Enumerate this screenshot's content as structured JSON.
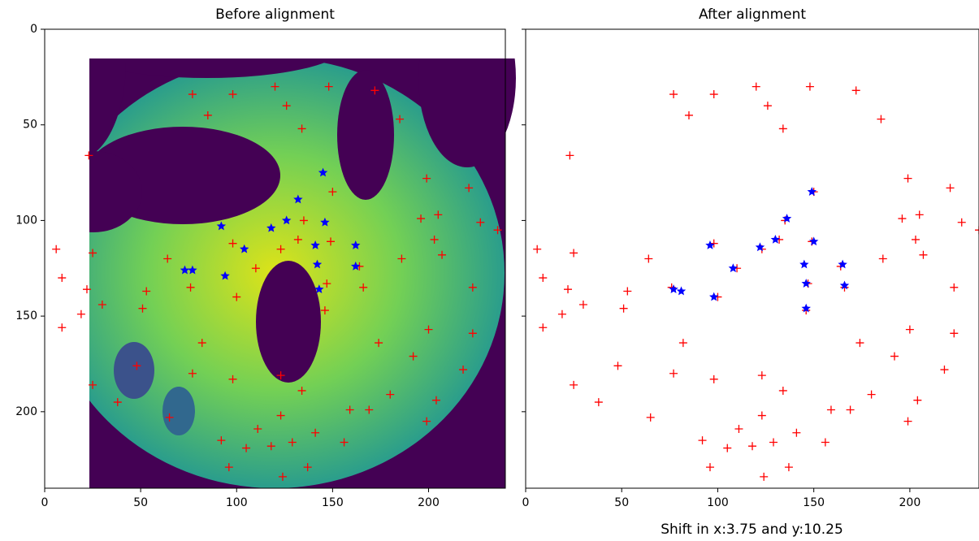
{
  "chart_data": [
    {
      "type": "scatter",
      "title": "Before alignment",
      "xlim": [
        0,
        240
      ],
      "ylim": [
        240,
        0
      ],
      "xticks": [
        0,
        50,
        100,
        150,
        200
      ],
      "yticks": [
        0,
        50,
        100,
        150,
        200
      ],
      "show_ytick_labels": true,
      "series": [
        {
          "marker": "+",
          "color": "#ff0000",
          "x": [
            77,
            98,
            120,
            126,
            85,
            134,
            148,
            172,
            185,
            23,
            199,
            221,
            150,
            205,
            196,
            227,
            236,
            135,
            149,
            132,
            123,
            98,
            25,
            6,
            203,
            207,
            186,
            64,
            164,
            110,
            9,
            22,
            76,
            53,
            147,
            166,
            223,
            30,
            19,
            51,
            100,
            146,
            9,
            200,
            223,
            174,
            82,
            192,
            48,
            218,
            77,
            98,
            123,
            134,
            25,
            180,
            38,
            204,
            159,
            169,
            199,
            123,
            65,
            111,
            141,
            92,
            129,
            118,
            156,
            105,
            137,
            96,
            124
          ],
          "y": [
            34,
            34,
            30,
            40,
            45,
            52,
            30,
            32,
            47,
            66,
            78,
            83,
            85,
            97,
            99,
            101,
            105,
            100,
            111,
            110,
            115,
            112,
            117,
            115,
            110,
            118,
            120,
            120,
            124,
            125,
            130,
            136,
            135,
            137,
            133,
            135,
            135,
            144,
            149,
            146,
            140,
            147,
            156,
            157,
            159,
            164,
            164,
            171,
            176,
            178,
            180,
            183,
            181,
            189,
            186,
            191,
            195,
            194,
            199,
            199,
            205,
            202,
            203,
            209,
            211,
            215,
            216,
            218,
            216,
            219,
            229,
            229,
            234
          ]
        },
        {
          "marker": "*",
          "color": "#0000ff",
          "x": [
            145,
            132,
            146,
            126,
            118,
            92,
            104,
            141,
            162,
            142,
            162,
            73,
            77,
            94,
            143
          ],
          "y": [
            75,
            89,
            101,
            100,
            104,
            103,
            115,
            113,
            113,
            123,
            124,
            126,
            126,
            129,
            136
          ]
        }
      ]
    },
    {
      "type": "scatter",
      "title": "After alignment",
      "xlabel": "Shift in x:3.75 and y:10.25",
      "xlim": [
        0,
        236
      ],
      "ylim": [
        240,
        0
      ],
      "xticks": [
        0,
        50,
        100,
        150,
        200
      ],
      "yticks": [
        0,
        50,
        100,
        150,
        200
      ],
      "show_ytick_labels": false,
      "series": [
        {
          "marker": "+",
          "color": "#ff0000",
          "x": [
            77,
            98,
            120,
            126,
            85,
            134,
            148,
            172,
            185,
            23,
            199,
            221,
            150,
            205,
            196,
            227,
            236,
            135,
            149,
            132,
            123,
            98,
            25,
            6,
            203,
            207,
            186,
            64,
            164,
            110,
            9,
            22,
            76,
            53,
            147,
            166,
            223,
            30,
            19,
            51,
            100,
            146,
            9,
            200,
            223,
            174,
            82,
            192,
            48,
            218,
            77,
            98,
            123,
            134,
            25,
            180,
            38,
            204,
            159,
            169,
            199,
            123,
            65,
            111,
            141,
            92,
            129,
            118,
            156,
            105,
            137,
            96,
            124
          ],
          "y": [
            34,
            34,
            30,
            40,
            45,
            52,
            30,
            32,
            47,
            66,
            78,
            83,
            85,
            97,
            99,
            101,
            105,
            100,
            111,
            110,
            115,
            112,
            117,
            115,
            110,
            118,
            120,
            120,
            124,
            125,
            130,
            136,
            135,
            137,
            133,
            135,
            135,
            144,
            149,
            146,
            140,
            147,
            156,
            157,
            159,
            164,
            164,
            171,
            176,
            178,
            180,
            183,
            181,
            189,
            186,
            191,
            195,
            194,
            199,
            199,
            205,
            202,
            203,
            209,
            211,
            215,
            216,
            218,
            216,
            219,
            229,
            229,
            234
          ]
        },
        {
          "marker": "*",
          "color": "#0000ff",
          "x": [
            149,
            136,
            150,
            130,
            122,
            96,
            108,
            145,
            165,
            146,
            166,
            77,
            81,
            98,
            146
          ],
          "y": [
            85,
            99,
            111,
            110,
            114,
            113,
            125,
            123,
            123,
            133,
            134,
            136,
            137,
            140,
            146
          ]
        }
      ]
    }
  ]
}
